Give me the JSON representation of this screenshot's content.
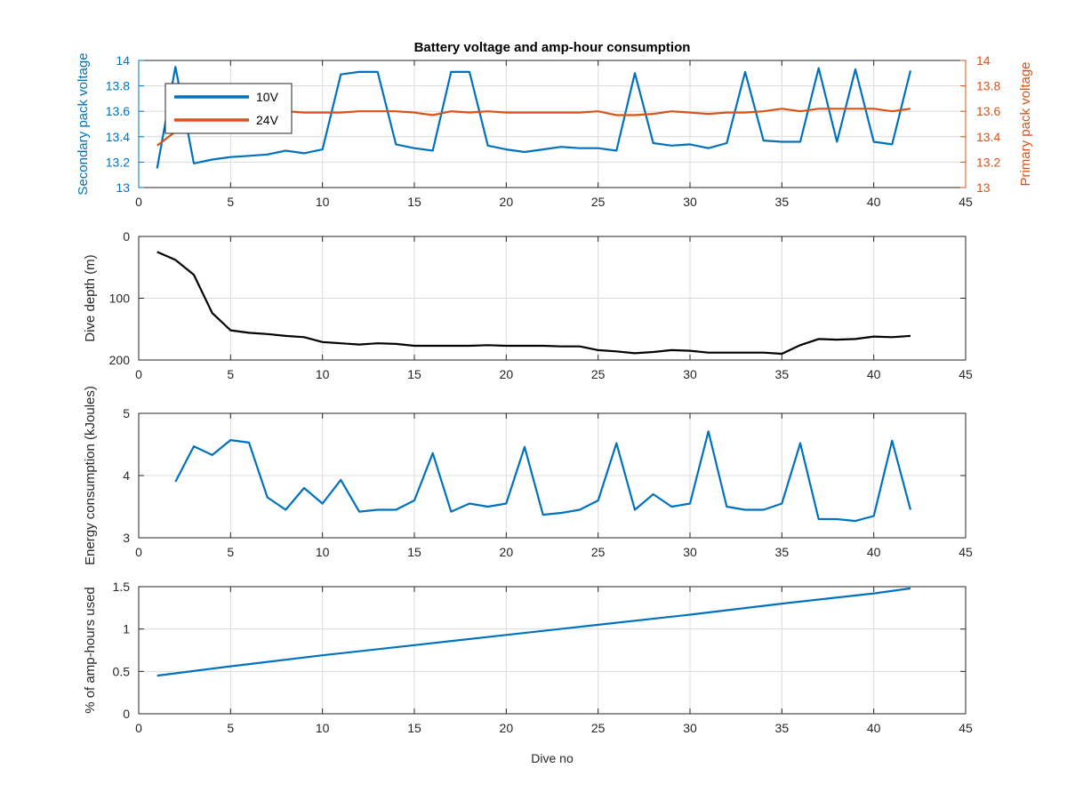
{
  "figure": {
    "title": "Battery voltage and amp-hour consumption",
    "xlabel": "Dive no"
  },
  "colors": {
    "blue": "#0072BD",
    "orange": "#D95319",
    "black": "#000000",
    "grid": "#dcdcdc",
    "axis": "#262626"
  },
  "chart_data": [
    {
      "type": "line",
      "xlim": [
        0,
        45
      ],
      "xticks": [
        0,
        5,
        10,
        15,
        20,
        25,
        30,
        35,
        40,
        45
      ],
      "grid": true,
      "legend": {
        "placement": "top-left",
        "entries": [
          "10V",
          "24V"
        ]
      },
      "left_axis": {
        "ylabel": "Secondary pack voltage",
        "ylim": [
          13,
          14
        ],
        "yticks": [
          13,
          13.2,
          13.4,
          13.6,
          13.8,
          14
        ],
        "ytick_labels": [
          "13",
          "13.2",
          "13.4",
          "13.6",
          "13.8",
          "14"
        ]
      },
      "right_axis": {
        "ylabel": "Primary pack voltage",
        "ylim": [
          13,
          14
        ],
        "yticks": [
          13,
          13.2,
          13.4,
          13.6,
          13.8,
          14
        ],
        "ytick_labels": [
          "13",
          "13.2",
          "13.4",
          "13.6",
          "13.8",
          "14"
        ]
      },
      "series": [
        {
          "name": "10V",
          "axis": "left",
          "color": "#0072BD",
          "x": [
            1,
            2,
            3,
            4,
            5,
            6,
            7,
            8,
            9,
            10,
            11,
            12,
            13,
            14,
            15,
            16,
            17,
            18,
            19,
            20,
            21,
            22,
            23,
            24,
            25,
            26,
            27,
            28,
            29,
            30,
            31,
            32,
            33,
            34,
            35,
            36,
            37,
            38,
            39,
            40,
            41,
            42
          ],
          "y": [
            13.15,
            13.95,
            13.19,
            13.22,
            13.24,
            13.25,
            13.26,
            13.29,
            13.27,
            13.3,
            13.89,
            13.91,
            13.91,
            13.34,
            13.31,
            13.29,
            13.91,
            13.91,
            13.33,
            13.3,
            13.28,
            13.3,
            13.32,
            13.31,
            13.31,
            13.29,
            13.9,
            13.35,
            13.33,
            13.34,
            13.31,
            13.35,
            13.91,
            13.37,
            13.36,
            13.36,
            13.94,
            13.36,
            13.93,
            13.36,
            13.34,
            13.92
          ]
        },
        {
          "name": "24V",
          "axis": "right",
          "color": "#D95319",
          "x": [
            1,
            2,
            3,
            4,
            5,
            6,
            7,
            8,
            9,
            10,
            11,
            12,
            13,
            14,
            15,
            16,
            17,
            18,
            19,
            20,
            21,
            22,
            23,
            24,
            25,
            26,
            27,
            28,
            29,
            30,
            31,
            32,
            33,
            34,
            35,
            36,
            37,
            38,
            39,
            40,
            41,
            42
          ],
          "y": [
            13.33,
            13.44,
            13.54,
            13.57,
            13.58,
            13.59,
            13.59,
            13.6,
            13.59,
            13.59,
            13.59,
            13.6,
            13.6,
            13.6,
            13.59,
            13.57,
            13.6,
            13.59,
            13.6,
            13.59,
            13.59,
            13.59,
            13.59,
            13.59,
            13.6,
            13.57,
            13.57,
            13.58,
            13.6,
            13.59,
            13.58,
            13.59,
            13.59,
            13.6,
            13.62,
            13.6,
            13.62,
            13.62,
            13.62,
            13.62,
            13.6,
            13.62
          ]
        }
      ]
    },
    {
      "type": "line",
      "ylabel": "Dive depth (m)",
      "xlim": [
        0,
        45
      ],
      "xticks": [
        0,
        5,
        10,
        15,
        20,
        25,
        30,
        35,
        40,
        45
      ],
      "ylim": [
        0,
        200
      ],
      "yreversed": true,
      "yticks": [
        0,
        100,
        200
      ],
      "ytick_labels": [
        "0",
        "100",
        "200"
      ],
      "grid": true,
      "series": [
        {
          "color": "#000000",
          "x": [
            1,
            2,
            3,
            4,
            5,
            6,
            7,
            8,
            9,
            10,
            11,
            12,
            13,
            14,
            15,
            16,
            17,
            18,
            19,
            20,
            21,
            22,
            23,
            24,
            25,
            26,
            27,
            28,
            29,
            30,
            31,
            32,
            33,
            34,
            35,
            36,
            37,
            38,
            39,
            40,
            41,
            42
          ],
          "y": [
            25,
            38,
            62,
            124,
            152,
            156,
            158,
            161,
            163,
            171,
            173,
            175,
            173,
            174,
            177,
            177,
            177,
            177,
            176,
            177,
            177,
            177,
            178,
            178,
            184,
            186,
            189,
            187,
            184,
            185,
            188,
            188,
            188,
            188,
            190,
            176,
            166,
            167,
            166,
            162,
            163,
            161
          ]
        }
      ]
    },
    {
      "type": "line",
      "ylabel": "Energy consumption (kJoules)",
      "xlim": [
        0,
        45
      ],
      "xticks": [
        0,
        5,
        10,
        15,
        20,
        25,
        30,
        35,
        40,
        45
      ],
      "ylim": [
        3,
        5
      ],
      "yticks": [
        3,
        4,
        5
      ],
      "ytick_labels": [
        "3",
        "4",
        "5"
      ],
      "grid": true,
      "series": [
        {
          "color": "#0072BD",
          "x": [
            2,
            3,
            4,
            5,
            6,
            7,
            8,
            9,
            10,
            11,
            12,
            13,
            14,
            15,
            16,
            17,
            18,
            19,
            20,
            21,
            22,
            23,
            24,
            25,
            26,
            27,
            28,
            29,
            30,
            31,
            32,
            33,
            34,
            35,
            36,
            37,
            38,
            39,
            40,
            41,
            42
          ],
          "y": [
            3.9,
            4.47,
            4.33,
            4.57,
            4.53,
            3.65,
            3.45,
            3.8,
            3.55,
            3.93,
            3.42,
            3.45,
            3.45,
            3.6,
            4.36,
            3.42,
            3.55,
            3.5,
            3.55,
            4.46,
            3.37,
            3.4,
            3.45,
            3.6,
            4.52,
            3.45,
            3.7,
            3.5,
            3.55,
            4.71,
            3.5,
            3.45,
            3.45,
            3.55,
            4.52,
            3.3,
            3.3,
            3.27,
            3.35,
            4.56,
            3.45
          ]
        }
      ]
    },
    {
      "type": "line",
      "ylabel": "% of amp-hours used",
      "xlabel": "Dive no",
      "xlim": [
        0,
        45
      ],
      "xticks": [
        0,
        5,
        10,
        15,
        20,
        25,
        30,
        35,
        40,
        45
      ],
      "ylim": [
        0,
        1.5
      ],
      "yticks": [
        0,
        0.5,
        1,
        1.5
      ],
      "ytick_labels": [
        "0",
        "0.5",
        "1",
        "1.5"
      ],
      "grid": true,
      "series": [
        {
          "color": "#0072BD",
          "x": [
            1,
            5,
            10,
            15,
            20,
            25,
            30,
            35,
            40,
            42
          ],
          "y": [
            0.45,
            0.56,
            0.69,
            0.81,
            0.93,
            1.05,
            1.17,
            1.3,
            1.42,
            1.48
          ]
        }
      ]
    }
  ]
}
